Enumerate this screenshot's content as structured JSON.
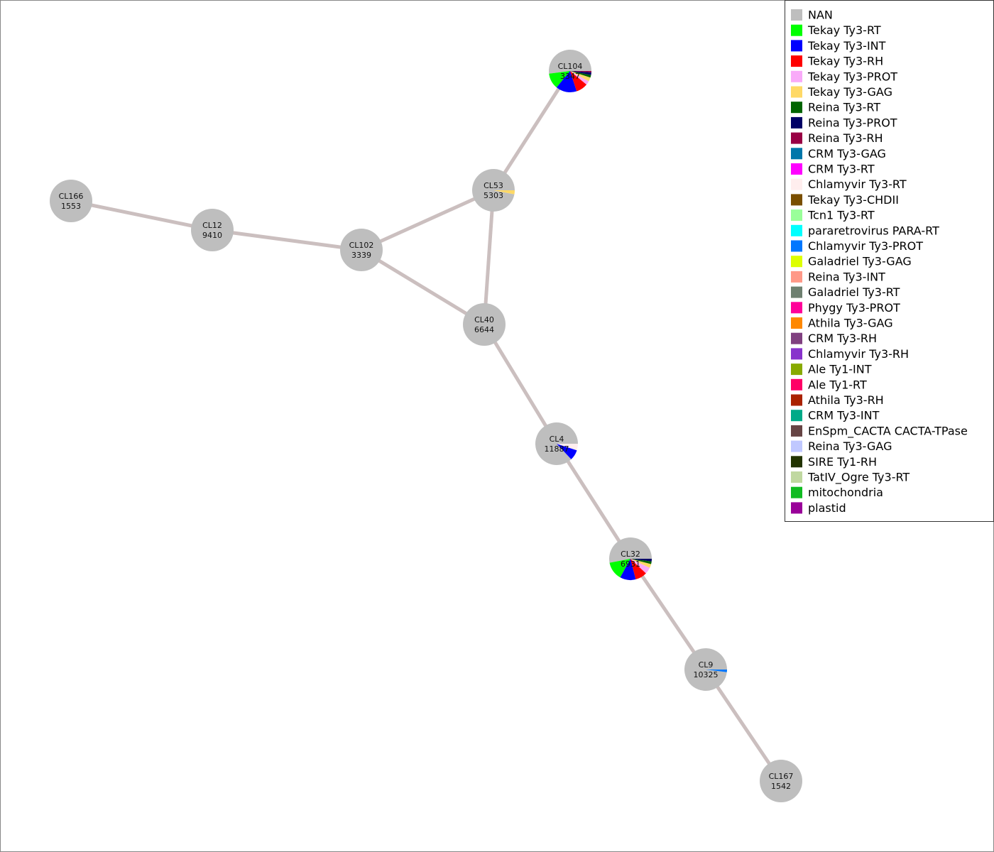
{
  "nodes": [
    {
      "label": "CL104",
      "count": "3347",
      "shares": [
        0.52,
        0.12,
        0.16,
        0.09,
        0.03,
        0.03,
        0.02,
        0.02,
        0.01
      ]
    },
    {
      "label": "CL53",
      "count": "5303",
      "shares": [
        0.97,
        0,
        0,
        0,
        0,
        0.03
      ]
    },
    {
      "label": "CL166",
      "count": "1553",
      "shares": [
        1
      ]
    },
    {
      "label": "CL12",
      "count": "9410",
      "shares": [
        1
      ]
    },
    {
      "label": "CL102",
      "count": "3339",
      "shares": [
        1
      ]
    },
    {
      "label": "CL40",
      "count": "6644",
      "shares": [
        1
      ]
    },
    {
      "label": "CL4",
      "count": "11887",
      "shares": [
        0.87,
        0,
        0.08,
        0,
        0,
        0,
        0,
        0,
        0,
        0,
        0,
        0.05
      ]
    },
    {
      "label": "CL32",
      "count": "6931",
      "shares": [
        0.53,
        0.14,
        0.12,
        0.09,
        0.05,
        0.03,
        0.02,
        0.02
      ]
    },
    {
      "label": "CL9",
      "count": "10325",
      "shares": [
        0.98,
        0,
        0,
        0,
        0,
        0,
        0,
        0,
        0,
        0,
        0,
        0,
        0,
        0,
        0,
        0.02
      ]
    },
    {
      "label": "CL167",
      "count": "1542",
      "shares": [
        1
      ]
    }
  ],
  "edges": [
    [
      0,
      1
    ],
    [
      1,
      4
    ],
    [
      1,
      5
    ],
    [
      4,
      5
    ],
    [
      4,
      3
    ],
    [
      3,
      2
    ],
    [
      5,
      6
    ],
    [
      6,
      7
    ],
    [
      7,
      8
    ],
    [
      8,
      9
    ]
  ],
  "legend": [
    {
      "name": "NAN",
      "color": "#bebebe"
    },
    {
      "name": "Tekay Ty3-RT",
      "color": "#00ff00"
    },
    {
      "name": "Tekay Ty3-INT",
      "color": "#0000ff"
    },
    {
      "name": "Tekay Ty3-RH",
      "color": "#ff0000"
    },
    {
      "name": "Tekay Ty3-PROT",
      "color": "#f9aaf9"
    },
    {
      "name": "Tekay Ty3-GAG",
      "color": "#ffd966"
    },
    {
      "name": "Reina Ty3-RT",
      "color": "#006400"
    },
    {
      "name": "Reina Ty3-PROT",
      "color": "#000066"
    },
    {
      "name": "Reina Ty3-RH",
      "color": "#990044"
    },
    {
      "name": "CRM Ty3-GAG",
      "color": "#0077aa"
    },
    {
      "name": "CRM Ty3-RT",
      "color": "#ff00ff"
    },
    {
      "name": "Chlamyvir Ty3-RT",
      "color": "#ffeeee"
    },
    {
      "name": "Tekay Ty3-CHDII",
      "color": "#7a4f00"
    },
    {
      "name": "Tcn1 Ty3-RT",
      "color": "#99ff99"
    },
    {
      "name": "pararetrovirus PARA-RT",
      "color": "#00ffff"
    },
    {
      "name": "Chlamyvir Ty3-PROT",
      "color": "#0077ff"
    },
    {
      "name": "Galadriel Ty3-GAG",
      "color": "#ddff00"
    },
    {
      "name": "Reina Ty3-INT",
      "color": "#ff9988"
    },
    {
      "name": "Galadriel Ty3-RT",
      "color": "#6e8070"
    },
    {
      "name": "Phygy Ty3-PROT",
      "color": "#ff0099"
    },
    {
      "name": "Athila Ty3-GAG",
      "color": "#ff8800"
    },
    {
      "name": "CRM Ty3-RH",
      "color": "#804080"
    },
    {
      "name": "Chlamyvir Ty3-RH",
      "color": "#8833cc"
    },
    {
      "name": "Ale Ty1-INT",
      "color": "#88aa00"
    },
    {
      "name": "Ale Ty1-RT",
      "color": "#ff0066"
    },
    {
      "name": "Athila Ty3-RH",
      "color": "#aa2200"
    },
    {
      "name": "CRM Ty3-INT",
      "color": "#00aa88"
    },
    {
      "name": "EnSpm_CACTA CACTA-TPase",
      "color": "#664444"
    },
    {
      "name": "Reina Ty3-GAG",
      "color": "#c0c8ff"
    },
    {
      "name": "SIRE Ty1-RH",
      "color": "#223300"
    },
    {
      "name": "TatIV_Ogre Ty3-RT",
      "color": "#c0d8a0"
    },
    {
      "name": "mitochondria",
      "color": "#11bb22"
    },
    {
      "name": "plastid",
      "color": "#990099"
    }
  ]
}
